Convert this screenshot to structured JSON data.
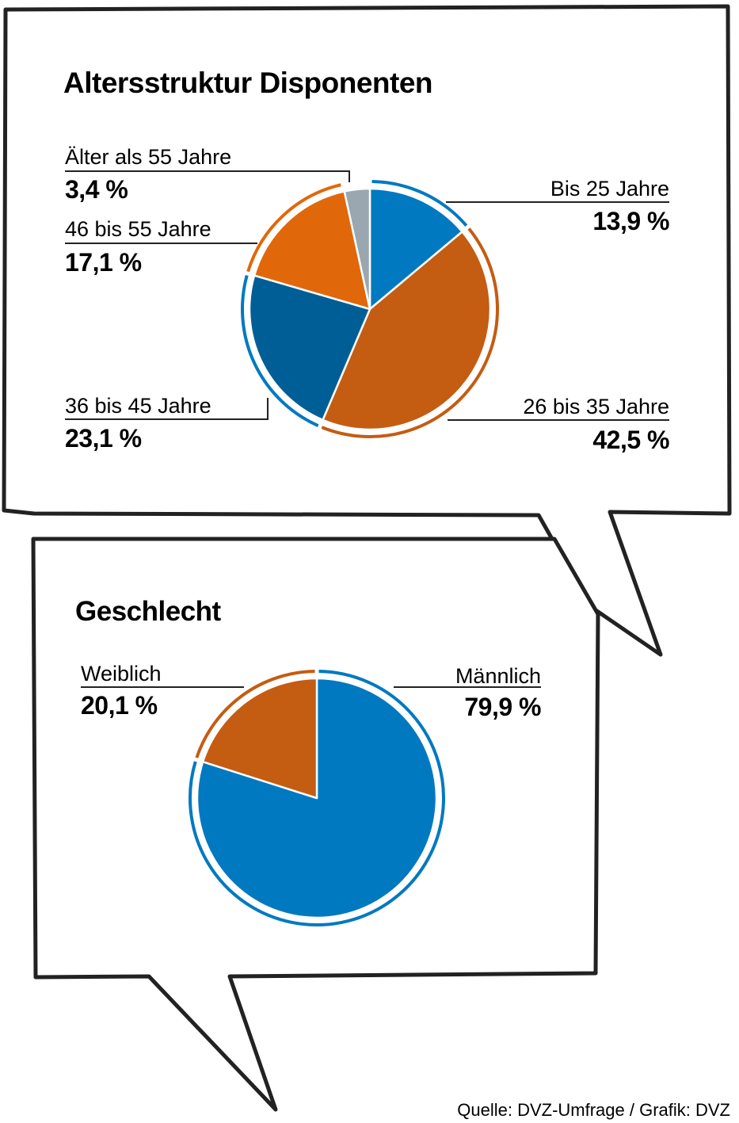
{
  "chart_data": [
    {
      "type": "pie",
      "title": "Altersstruktur Disponenten",
      "colors": {
        "bis_25": "#0079c0",
        "26_35": "#c45c12",
        "36_45": "#005e97",
        "46_55": "#e0680b",
        "ueber_55": "#9aa7b1"
      },
      "slices": [
        {
          "key": "bis_25",
          "label": "Bis 25 Jahre",
          "value": 13.9,
          "display": "13,9 %",
          "color": "#0079c0",
          "ring": "#0079c0"
        },
        {
          "key": "26_35",
          "label": "26 bis 35 Jahre",
          "value": 42.5,
          "display": "42,5 %",
          "color": "#c45c12",
          "ring": "#c45c12"
        },
        {
          "key": "36_45",
          "label": "36 bis 45 Jahre",
          "value": 23.1,
          "display": "23,1 %",
          "color": "#005e97",
          "ring": "#0079c0"
        },
        {
          "key": "46_55",
          "label": "46 bis 55 Jahre",
          "value": 17.1,
          "display": "17,1 %",
          "color": "#e0680b",
          "ring": "#e0680b"
        },
        {
          "key": "ueber_55",
          "label": "Älter als 55 Jahre",
          "value": 3.4,
          "display": "3,4 %",
          "color": "#9aa7b1",
          "ring": "none"
        }
      ]
    },
    {
      "type": "pie",
      "title": "Geschlecht",
      "slices": [
        {
          "key": "maennlich",
          "label": "Männlich",
          "value": 79.9,
          "display": "79,9 %",
          "color": "#0079c0",
          "ring": "#0079c0"
        },
        {
          "key": "weiblich",
          "label": "Weiblich",
          "value": 20.1,
          "display": "20,1 %",
          "color": "#c45c12",
          "ring": "#c45c12"
        }
      ]
    }
  ],
  "source": "Quelle: DVZ-Umfrage / Grafik: DVZ"
}
